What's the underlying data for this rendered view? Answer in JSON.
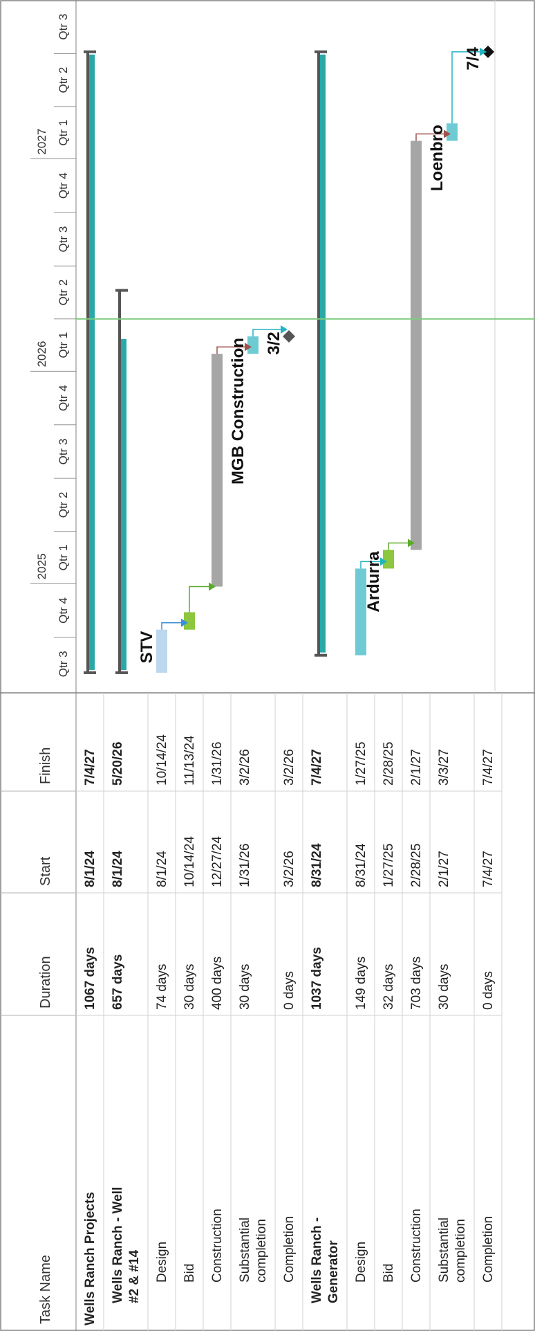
{
  "chart_data": {
    "type": "gantt",
    "columns": [
      "Task Name",
      "Duration",
      "Start",
      "Finish"
    ],
    "timescale": {
      "years": [
        "2025",
        "2026",
        "2027"
      ],
      "quarters": [
        "Qtr 3",
        "Qtr 4",
        "Qtr 1",
        "Qtr 2",
        "Qtr 3",
        "Qtr 4",
        "Qtr 1",
        "Qtr 2",
        "Qtr 3",
        "Qtr 4",
        "Qtr 1",
        "Qtr 2",
        "Qtr 3"
      ],
      "range": [
        "2024-07-01",
        "2027-10-01"
      ]
    },
    "status_date": "2026-04-01",
    "tasks": [
      {
        "name": "Wells Ranch Projects",
        "duration": "1067 days",
        "start_label": "8/1/24",
        "finish_label": "7/4/27",
        "start": "2024-08-01",
        "finish": "2027-07-04",
        "level": 0,
        "summary": true,
        "progress": 100
      },
      {
        "name": "Wells Ranch - Well #2 & #14",
        "duration": "657 days",
        "start_label": "8/1/24",
        "finish_label": "5/20/26",
        "start": "2024-08-01",
        "finish": "2026-05-20",
        "level": 1,
        "summary": true,
        "progress": 88
      },
      {
        "name": "Design",
        "duration": "74 days",
        "start_label": "8/1/24",
        "finish_label": "10/14/24",
        "start": "2024-08-01",
        "finish": "2024-10-14",
        "level": 2,
        "color": "#bdd7ee",
        "resource": "STV"
      },
      {
        "name": "Bid",
        "duration": "30 days",
        "start_label": "10/14/24",
        "finish_label": "11/13/24",
        "start": "2024-10-14",
        "finish": "2024-11-13",
        "level": 2,
        "color": "#8dc63f"
      },
      {
        "name": "Construction",
        "duration": "400 days",
        "start_label": "12/27/24",
        "finish_label": "1/31/26",
        "start": "2024-12-27",
        "finish": "2026-01-31",
        "level": 2,
        "color": "#a6a6a6"
      },
      {
        "name": "Substantial completion",
        "duration": "30 days",
        "start_label": "1/31/26",
        "finish_label": "3/2/26",
        "start": "2026-01-31",
        "finish": "2026-03-02",
        "level": 2,
        "color": "#6ecbd3",
        "resource": "MGB Construction"
      },
      {
        "name": "Completion",
        "duration": "0 days",
        "start_label": "3/2/26",
        "finish_label": "3/2/26",
        "start": "2026-03-02",
        "finish": "2026-03-02",
        "level": 2,
        "milestone": true,
        "milestone_label": "3/2",
        "milestone_color": "#555555"
      },
      {
        "name": "Wells Ranch - Generator",
        "duration": "1037 days",
        "start_label": "8/31/24",
        "finish_label": "7/4/27",
        "start": "2024-08-31",
        "finish": "2027-07-04",
        "level": 1,
        "summary": true,
        "progress": 100
      },
      {
        "name": "Design",
        "duration": "149 days",
        "start_label": "8/31/24",
        "finish_label": "1/27/25",
        "start": "2024-08-31",
        "finish": "2025-01-27",
        "level": 2,
        "color": "#6ecbd3"
      },
      {
        "name": "Bid",
        "duration": "32 days",
        "start_label": "1/27/25",
        "finish_label": "2/28/25",
        "start": "2025-01-27",
        "finish": "2025-02-28",
        "level": 2,
        "color": "#8dc63f",
        "resource": "Ardurra"
      },
      {
        "name": "Construction",
        "duration": "703 days",
        "start_label": "2/28/25",
        "finish_label": "2/1/27",
        "start": "2025-02-28",
        "finish": "2027-02-01",
        "level": 2,
        "color": "#a6a6a6"
      },
      {
        "name": "Substantial completion",
        "duration": "30 days",
        "start_label": "2/1/27",
        "finish_label": "3/3/27",
        "start": "2027-02-01",
        "finish": "2027-03-03",
        "level": 2,
        "color": "#6ecbd3",
        "resource": "Loenbro"
      },
      {
        "name": "Completion",
        "duration": "0 days",
        "start_label": "7/4/27",
        "finish_label": "7/4/27",
        "start": "2027-07-04",
        "finish": "2027-07-04",
        "level": 2,
        "milestone": true,
        "milestone_label": "7/4",
        "milestone_color": "#111111"
      }
    ],
    "links": [
      [
        2,
        3
      ],
      [
        3,
        4
      ],
      [
        4,
        5
      ],
      [
        5,
        6
      ],
      [
        8,
        9
      ],
      [
        9,
        10
      ],
      [
        10,
        11
      ],
      [
        11,
        12
      ]
    ],
    "colors": {
      "summary_bar": "#555555",
      "progress_bar": "#2aa8a8",
      "grid": "#d0d0d0",
      "status_line": "#7ccc7c",
      "link_blue": "#3a8fd8",
      "link_green": "#5aab2a",
      "link_red": "#a0524c",
      "link_teal": "#22b3c0"
    }
  }
}
